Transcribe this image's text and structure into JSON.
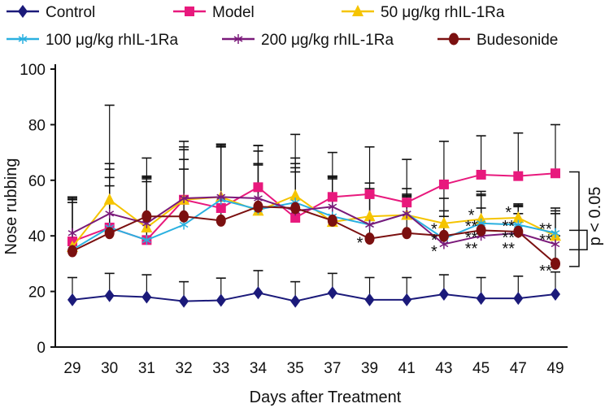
{
  "chart_data": {
    "type": "line",
    "title": "",
    "xlabel": "Days after Treatment",
    "ylabel": "Nose rubbing",
    "categories": [
      "29",
      "30",
      "31",
      "32",
      "33",
      "34",
      "35",
      "37",
      "39",
      "41",
      "43",
      "45",
      "47",
      "49"
    ],
    "ylim": [
      0,
      100
    ],
    "yticks": [
      0,
      20,
      40,
      60,
      80,
      100
    ],
    "legend_position": "top",
    "series": [
      {
        "name": "Control",
        "color": "#1b1a7a",
        "marker": "diamond",
        "values": [
          17,
          18.5,
          18,
          16.5,
          16.8,
          19.5,
          16.5,
          19.5,
          17,
          17,
          19,
          17.5,
          17.5,
          19
        ],
        "errors": [
          8,
          8,
          8,
          7,
          8,
          8,
          7,
          7,
          8,
          8,
          7,
          7.5,
          8,
          8
        ]
      },
      {
        "name": "Model",
        "color": "#e8197d",
        "marker": "square",
        "values": [
          38,
          43,
          38.5,
          53,
          50,
          57.5,
          46.5,
          54,
          55,
          52,
          58.5,
          62,
          61.5,
          62.5
        ],
        "errors": [
          15,
          44,
          23,
          21,
          23,
          15,
          30,
          16,
          17,
          15.5,
          15.5,
          14,
          15.5,
          17.5
        ]
      },
      {
        "name": "50 μg/kg rhIL-1Ra",
        "color": "#f5c400",
        "marker": "triangle",
        "values": [
          36,
          53,
          43,
          53,
          54,
          49,
          54.5,
          45,
          47,
          47.5,
          44.5,
          46,
          46.5,
          40
        ],
        "errors": [
          17,
          8,
          18,
          19,
          18,
          17,
          10,
          16,
          10,
          7,
          13,
          10,
          5,
          8
        ]
      },
      {
        "name": "100 μg/kg rhIL-1Ra",
        "color": "#2ab0e0",
        "marker": "asterisk",
        "values": [
          35,
          43,
          38.5,
          44,
          53,
          49.5,
          52,
          47,
          44,
          48,
          39,
          44.5,
          44,
          41
        ],
        "errors": [
          17,
          15,
          21,
          20,
          20,
          16,
          14,
          13.5,
          15,
          9,
          10,
          10,
          7,
          9
        ]
      },
      {
        "name": "200 μg/kg rhIL-1Ra",
        "color": "#7a1a7a",
        "marker": "asterisk",
        "values": [
          41,
          48,
          44.5,
          53.5,
          54,
          53.5,
          49,
          50.5,
          44,
          48,
          37,
          40,
          41,
          37
        ],
        "errors": [
          13,
          16,
          16,
          14,
          18,
          17,
          14,
          11,
          11,
          7,
          10,
          10,
          7,
          12
        ]
      },
      {
        "name": "Budesonide",
        "color": "#7b1010",
        "marker": "circle",
        "values": [
          34.5,
          41,
          47,
          47,
          45.5,
          50.5,
          50,
          45.5,
          39,
          41,
          40,
          42,
          41.5,
          30
        ],
        "errors": [
          19,
          25,
          21,
          24,
          27,
          22,
          18,
          16,
          15,
          13,
          13.5,
          13,
          9,
          10
        ]
      }
    ],
    "annotations": {
      "stars": [
        {
          "text": "*",
          "day": "39",
          "y": 39
        },
        {
          "text": "*",
          "day": "43",
          "y": 44
        },
        {
          "text": "*",
          "day": "43",
          "y": 40
        },
        {
          "text": "*",
          "day": "43",
          "y": 36
        },
        {
          "text": "*",
          "day": "45",
          "y": 49
        },
        {
          "text": "**",
          "day": "45",
          "y": 45
        },
        {
          "text": "**",
          "day": "45",
          "y": 41
        },
        {
          "text": "**",
          "day": "45",
          "y": 37
        },
        {
          "text": "*",
          "day": "47",
          "y": 50
        },
        {
          "text": "**",
          "day": "47",
          "y": 45
        },
        {
          "text": "**",
          "day": "47",
          "y": 41
        },
        {
          "text": "**",
          "day": "47",
          "y": 37
        },
        {
          "text": "**",
          "day": "49",
          "y": 44
        },
        {
          "text": "**",
          "day": "49",
          "y": 40
        },
        {
          "text": "**",
          "day": "49",
          "y": 29
        }
      ],
      "significance_label": "p < 0.05"
    }
  }
}
